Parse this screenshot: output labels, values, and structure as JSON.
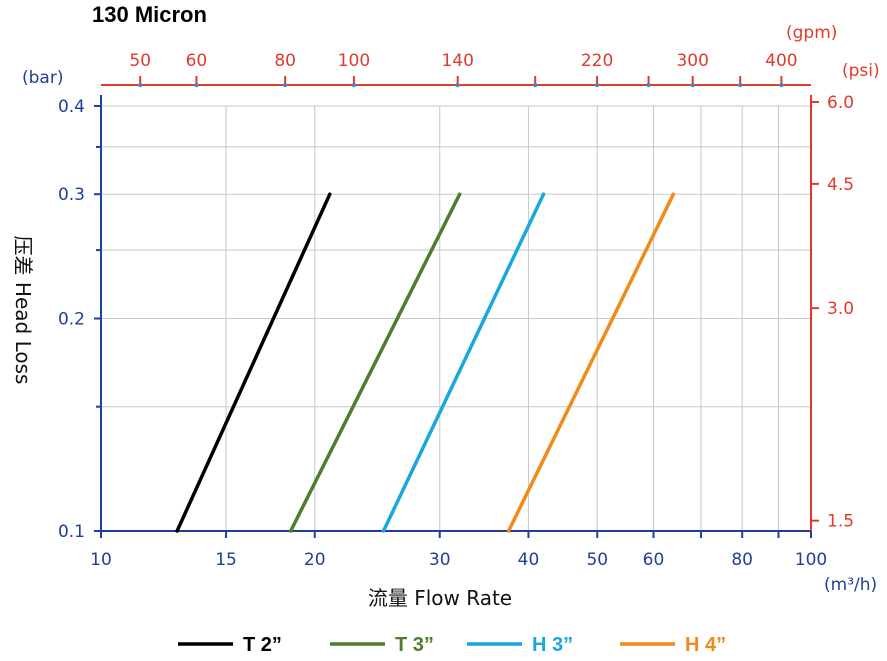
{
  "chart_data": {
    "type": "line",
    "title": "130 Micron",
    "xlabel": "流量 Flow Rate",
    "ylabel": "压差 Head Loss",
    "x_unit": "(m³/h)",
    "y_unit": "(bar)",
    "x_scale": "log",
    "y_scale": "log",
    "xlim": [
      10,
      100
    ],
    "ylim": [
      0.1,
      0.4
    ],
    "x_ticks": [
      10,
      15,
      20,
      30,
      40,
      50,
      60,
      80,
      100
    ],
    "x_tick_labels": [
      "10",
      "15",
      "20",
      "30",
      "40",
      "50",
      "60",
      "80",
      "100"
    ],
    "y_ticks": [
      0.1,
      0.2,
      0.3,
      0.4
    ],
    "y_tick_labels": [
      "0.1",
      "0.2",
      "0.3",
      "0.4"
    ],
    "top_axis": {
      "unit": "(gpm)",
      "ticks": [
        50,
        60,
        80,
        100,
        140,
        220,
        300,
        400
      ],
      "tick_labels": [
        "50",
        "60",
        "80",
        "100",
        "140",
        "220",
        "300",
        "400"
      ]
    },
    "right_axis": {
      "unit": "(psi)",
      "ticks": [
        1.5,
        3.0,
        4.5,
        6.0
      ],
      "tick_labels": [
        "1.5",
        "3.0",
        "4.5",
        "6.0"
      ]
    },
    "grid": true,
    "legend_position": "bottom",
    "series": [
      {
        "name": "T 2”",
        "color": "#000000",
        "x": [
          12.8,
          21.0
        ],
        "y": [
          0.1,
          0.3
        ]
      },
      {
        "name": "T 3”",
        "color": "#4e7d2f",
        "x": [
          18.5,
          32.0
        ],
        "y": [
          0.1,
          0.3
        ]
      },
      {
        "name": "H 3”",
        "color": "#1aa6de",
        "x": [
          25.0,
          42.0
        ],
        "y": [
          0.1,
          0.3
        ]
      },
      {
        "name": "H 4”",
        "color": "#f08a1a",
        "x": [
          37.5,
          64.0
        ],
        "y": [
          0.1,
          0.3
        ]
      }
    ],
    "colors": {
      "left_axis": "#1f3f9a",
      "right_axis": "#e03a2c",
      "grid": "#c8c8c8"
    }
  }
}
